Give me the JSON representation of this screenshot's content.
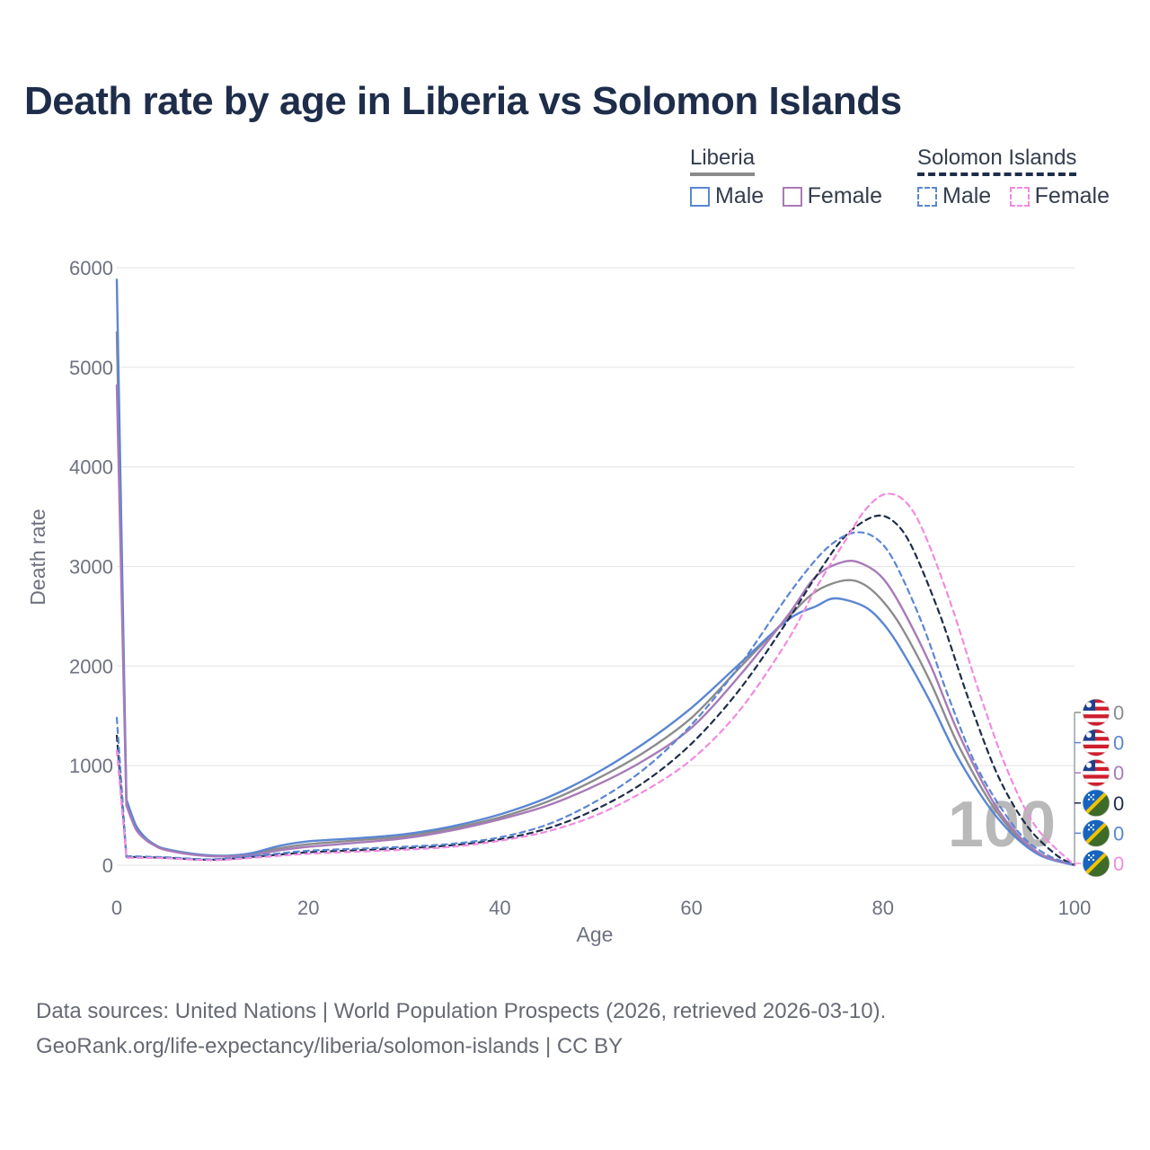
{
  "title": "Death rate by age in Liberia vs Solomon Islands",
  "legend": {
    "groups": [
      {
        "name": "Liberia",
        "items": [
          "Male",
          "Female"
        ]
      },
      {
        "name": "Solomon Islands",
        "items": [
          "Male",
          "Female"
        ]
      }
    ]
  },
  "colors": {
    "liberia_total": "#8c8c8c",
    "liberia_male": "#5b86d1",
    "liberia_female": "#a97ab8",
    "solomon_total": "#1e2d4a",
    "solomon_male": "#5b86d1",
    "solomon_female": "#f28be0"
  },
  "source": {
    "line1": "Data sources: United Nations | World Population Prospects (2026, retrieved 2026-03-10).",
    "line2": "GeoRank.org/life-expectancy/liberia/solomon-islands | CC BY"
  },
  "chart_data": {
    "type": "line",
    "title": "Death rate by age in Liberia vs Solomon Islands",
    "xlabel": "Age",
    "ylabel": "Death rate",
    "xlim": [
      0,
      100
    ],
    "ylim": [
      0,
      6000
    ],
    "xticks": [
      0,
      20,
      40,
      60,
      80,
      100
    ],
    "yticks": [
      0,
      1000,
      2000,
      3000,
      4000,
      5000,
      6000
    ],
    "grid": true,
    "watermark": "100",
    "end_labels": [
      {
        "flag": "liberia",
        "value": "0",
        "color": "#8c8c8c"
      },
      {
        "flag": "liberia",
        "value": "0",
        "color": "#5b86d1"
      },
      {
        "flag": "liberia",
        "value": "0",
        "color": "#a97ab8"
      },
      {
        "flag": "solomon",
        "value": "0",
        "color": "#1e2d4a"
      },
      {
        "flag": "solomon",
        "value": "0",
        "color": "#5b86d1"
      },
      {
        "flag": "solomon",
        "value": "0",
        "color": "#f28be0"
      }
    ],
    "series": [
      {
        "name": "Liberia Total",
        "dash": false,
        "color": "#8c8c8c",
        "x": [
          0,
          1,
          2,
          3,
          4,
          5,
          8,
          11,
          14,
          17,
          20,
          25,
          30,
          35,
          40,
          45,
          50,
          55,
          60,
          65,
          70,
          73,
          76,
          78,
          80,
          82,
          85,
          88,
          92,
          96,
          100
        ],
        "y": [
          5350,
          630,
          380,
          265,
          200,
          160,
          110,
          90,
          110,
          170,
          210,
          250,
          290,
          370,
          480,
          640,
          860,
          1130,
          1480,
          1980,
          2480,
          2750,
          2860,
          2820,
          2650,
          2380,
          1830,
          1180,
          520,
          130,
          0
        ]
      },
      {
        "name": "Liberia Male",
        "dash": false,
        "color": "#5b86d1",
        "x": [
          0,
          1,
          2,
          3,
          4,
          5,
          8,
          11,
          14,
          17,
          20,
          25,
          30,
          35,
          40,
          45,
          50,
          55,
          60,
          65,
          70,
          73,
          75,
          78,
          80,
          82,
          85,
          88,
          92,
          96,
          100
        ],
        "y": [
          5880,
          660,
          400,
          275,
          205,
          165,
          115,
          95,
          120,
          195,
          240,
          270,
          310,
          390,
          510,
          680,
          920,
          1220,
          1580,
          2020,
          2460,
          2600,
          2680,
          2600,
          2430,
          2150,
          1630,
          1050,
          470,
          120,
          0
        ]
      },
      {
        "name": "Liberia Female",
        "dash": false,
        "color": "#a97ab8",
        "x": [
          0,
          1,
          2,
          3,
          4,
          5,
          8,
          11,
          14,
          17,
          20,
          25,
          30,
          35,
          40,
          45,
          50,
          55,
          60,
          65,
          70,
          73,
          76,
          78,
          80,
          82,
          85,
          88,
          92,
          96,
          100
        ],
        "y": [
          4820,
          600,
          360,
          255,
          195,
          155,
          105,
          88,
          100,
          150,
          185,
          225,
          270,
          350,
          460,
          600,
          800,
          1050,
          1380,
          1900,
          2500,
          2900,
          3050,
          3020,
          2880,
          2580,
          2000,
          1300,
          560,
          140,
          0
        ]
      },
      {
        "name": "Solomon Islands Total",
        "dash": true,
        "color": "#1e2d4a",
        "x": [
          0,
          1,
          5,
          10,
          15,
          20,
          25,
          30,
          35,
          40,
          45,
          50,
          55,
          60,
          65,
          70,
          73,
          76,
          79,
          81,
          83,
          86,
          89,
          92,
          95,
          98,
          100
        ],
        "y": [
          1300,
          85,
          75,
          55,
          90,
          130,
          150,
          170,
          200,
          260,
          370,
          560,
          830,
          1220,
          1760,
          2450,
          2900,
          3300,
          3500,
          3460,
          3200,
          2500,
          1650,
          900,
          400,
          110,
          0
        ]
      },
      {
        "name": "Solomon Islands Male",
        "dash": true,
        "color": "#5b86d1",
        "x": [
          0,
          1,
          5,
          10,
          15,
          20,
          25,
          30,
          35,
          40,
          45,
          50,
          55,
          60,
          65,
          70,
          73,
          75,
          77,
          79,
          81,
          84,
          87,
          90,
          94,
          97,
          100
        ],
        "y": [
          1480,
          90,
          80,
          60,
          100,
          145,
          165,
          185,
          215,
          280,
          410,
          640,
          960,
          1410,
          2000,
          2700,
          3070,
          3250,
          3340,
          3300,
          3080,
          2450,
          1650,
          950,
          350,
          110,
          0
        ]
      },
      {
        "name": "Solomon Islands Female",
        "dash": true,
        "color": "#f28be0",
        "x": [
          0,
          1,
          5,
          10,
          15,
          20,
          25,
          30,
          35,
          40,
          45,
          50,
          55,
          60,
          65,
          70,
          73,
          76,
          78,
          80,
          82,
          84,
          87,
          90,
          93,
          96,
          100
        ],
        "y": [
          1150,
          75,
          70,
          50,
          80,
          115,
          135,
          155,
          185,
          245,
          340,
          500,
          740,
          1060,
          1550,
          2250,
          2780,
          3250,
          3550,
          3720,
          3680,
          3400,
          2650,
          1750,
          950,
          380,
          0
        ]
      }
    ]
  }
}
